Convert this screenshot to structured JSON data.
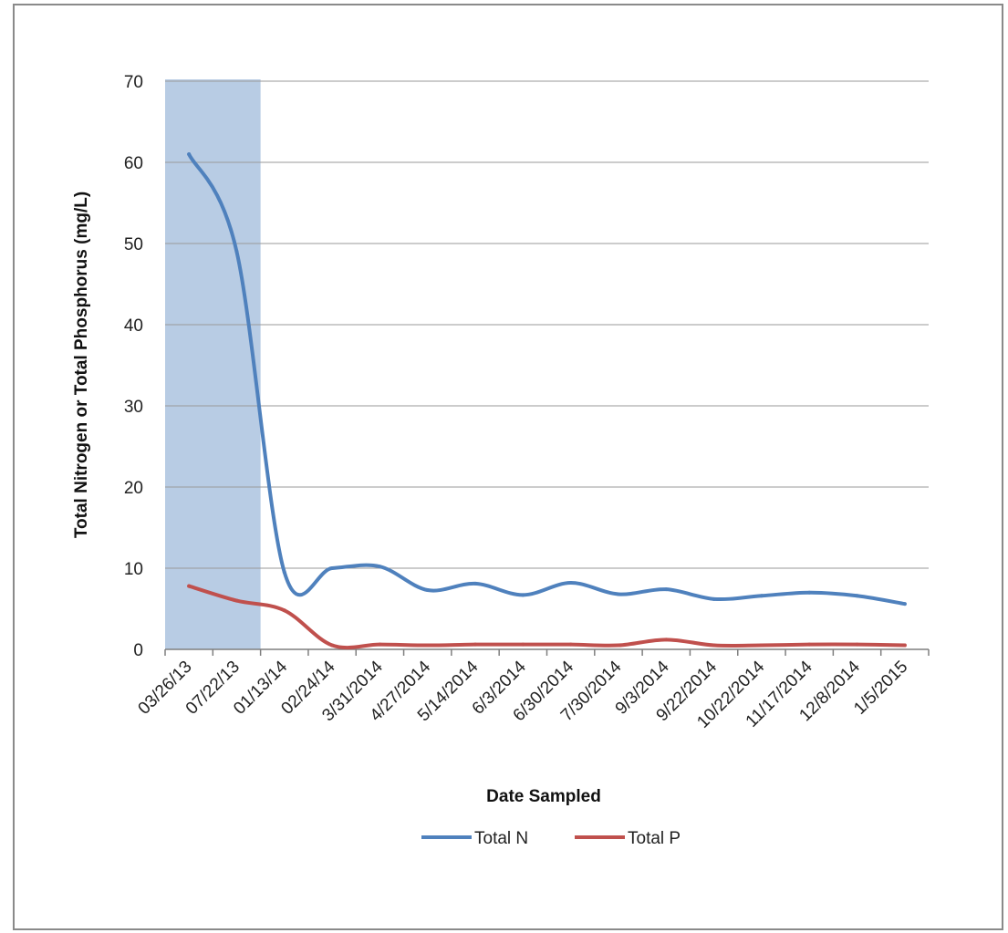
{
  "chart_data": {
    "type": "line",
    "title": "",
    "xlabel": "Date Sampled",
    "ylabel": "Total Nitrogen or Total Phosphorus (mg/L)",
    "ylim": [
      0,
      70
    ],
    "yticks": [
      0,
      10,
      20,
      30,
      40,
      50,
      60,
      70
    ],
    "grid": true,
    "legend": "bottom",
    "categories": [
      "03/26/13",
      "07/22/13",
      "01/13/14",
      "02/24/14",
      "3/31/2014",
      "4/27/2014",
      "5/14/2014",
      "6/3/2014",
      "6/30/2014",
      "7/30/2014",
      "9/3/2014",
      "9/22/2014",
      "10/22/2014",
      "11/17/2014",
      "12/8/2014",
      "1/5/2015"
    ],
    "highlight": {
      "from": "03/26/13",
      "to": "07/22/13",
      "color": "#b8cce4"
    },
    "series": [
      {
        "name": "Total N",
        "color": "#4f81bd",
        "values": [
          61,
          49,
          9.5,
          10,
          10.2,
          7.3,
          8.1,
          6.7,
          8.2,
          6.8,
          7.4,
          6.2,
          6.6,
          7.0,
          6.6,
          5.6
        ]
      },
      {
        "name": "Total P",
        "color": "#c0504d",
        "values": [
          7.8,
          6.0,
          4.8,
          0.5,
          0.6,
          0.5,
          0.6,
          0.6,
          0.6,
          0.5,
          1.2,
          0.5,
          0.5,
          0.6,
          0.6,
          0.5
        ]
      }
    ]
  }
}
